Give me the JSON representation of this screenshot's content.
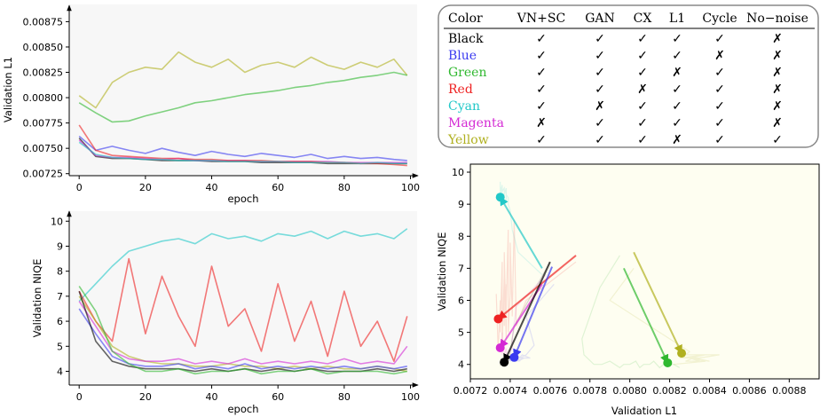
{
  "colors": {
    "Black": "#000000",
    "Blue": "#3a3af0",
    "Green": "#2fb82f",
    "Red": "#ee2222",
    "Cyan": "#22c8c8",
    "Magenta": "#d42ad4",
    "Yellow": "#b0b020",
    "panel_bg": "#f7f7f7"
  },
  "table": {
    "headers": [
      "Color",
      "VN+SC",
      "GAN",
      "CX",
      "L1",
      "Cycle",
      "No−noise"
    ],
    "rows": [
      {
        "name": "Black",
        "marks": [
          "✓",
          "✓",
          "✓",
          "✓",
          "✓",
          "✗"
        ]
      },
      {
        "name": "Blue",
        "marks": [
          "✓",
          "✓",
          "✓",
          "✓",
          "✗",
          "✗"
        ]
      },
      {
        "name": "Green",
        "marks": [
          "✓",
          "✓",
          "✓",
          "✗",
          "✓",
          "✗"
        ]
      },
      {
        "name": "Red",
        "marks": [
          "✓",
          "✓",
          "✗",
          "✓",
          "✓",
          "✗"
        ]
      },
      {
        "name": "Cyan",
        "marks": [
          "✓",
          "✗",
          "✓",
          "✓",
          "✓",
          "✗"
        ]
      },
      {
        "name": "Magenta",
        "marks": [
          "✗",
          "✓",
          "✓",
          "✓",
          "✓",
          "✗"
        ]
      },
      {
        "name": "Yellow",
        "marks": [
          "✓",
          "✓",
          "✓",
          "✗",
          "✓",
          "✓"
        ]
      }
    ]
  },
  "chart_data": [
    {
      "type": "line",
      "xlabel": "epoch",
      "ylabel": "Validation L1",
      "xlim": [
        -3,
        102
      ],
      "ylim": [
        0.00723,
        0.00892
      ],
      "xticks": [
        0,
        20,
        40,
        60,
        80,
        100
      ],
      "yticks": [
        0.00725,
        0.0075,
        0.00775,
        0.008,
        0.00825,
        0.0085,
        0.00875
      ],
      "ytick_labels": [
        "0.00725",
        "0.00750",
        "0.00775",
        "0.00800",
        "0.00825",
        "0.00850",
        "0.00875"
      ],
      "grid": false,
      "series": [
        {
          "color": "Yellow",
          "x": [
            0,
            5,
            10,
            15,
            20,
            25,
            30,
            35,
            40,
            45,
            50,
            55,
            60,
            65,
            70,
            75,
            80,
            85,
            90,
            95,
            99
          ],
          "values": [
            0.00802,
            0.0079,
            0.00815,
            0.00825,
            0.0083,
            0.00828,
            0.00845,
            0.00835,
            0.0083,
            0.00838,
            0.00825,
            0.00832,
            0.00835,
            0.0083,
            0.0084,
            0.00832,
            0.00828,
            0.00835,
            0.0083,
            0.00838,
            0.00822
          ]
        },
        {
          "color": "Green",
          "x": [
            0,
            5,
            10,
            15,
            20,
            25,
            30,
            35,
            40,
            45,
            50,
            55,
            60,
            65,
            70,
            75,
            80,
            85,
            90,
            95,
            99
          ],
          "values": [
            0.00795,
            0.00785,
            0.00776,
            0.00777,
            0.00782,
            0.00786,
            0.0079,
            0.00795,
            0.00797,
            0.008,
            0.00803,
            0.00805,
            0.00807,
            0.0081,
            0.00812,
            0.00815,
            0.00817,
            0.0082,
            0.00822,
            0.00825,
            0.00822
          ]
        },
        {
          "color": "Blue",
          "x": [
            0,
            5,
            10,
            15,
            20,
            25,
            30,
            35,
            40,
            45,
            50,
            55,
            60,
            65,
            70,
            75,
            80,
            85,
            90,
            95,
            99
          ],
          "values": [
            0.00762,
            0.00748,
            0.00752,
            0.00748,
            0.00745,
            0.0075,
            0.00746,
            0.00743,
            0.00747,
            0.00744,
            0.00742,
            0.00745,
            0.00743,
            0.00741,
            0.00744,
            0.0074,
            0.00742,
            0.0074,
            0.00741,
            0.00739,
            0.00738
          ]
        },
        {
          "color": "Black",
          "x": [
            0,
            5,
            10,
            15,
            20,
            25,
            30,
            35,
            40,
            45,
            50,
            55,
            60,
            65,
            70,
            75,
            80,
            85,
            90,
            95,
            99
          ],
          "values": [
            0.0076,
            0.00742,
            0.0074,
            0.0074,
            0.00739,
            0.00738,
            0.00738,
            0.00738,
            0.00737,
            0.00737,
            0.00737,
            0.00736,
            0.00736,
            0.00736,
            0.00736,
            0.00735,
            0.00735,
            0.00735,
            0.00735,
            0.00735,
            0.00735
          ]
        },
        {
          "color": "Magenta",
          "x": [
            0,
            5,
            10,
            15,
            20,
            25,
            30,
            35,
            40,
            45,
            50,
            55,
            60,
            65,
            70,
            75,
            80,
            85,
            90,
            95,
            99
          ],
          "values": [
            0.00758,
            0.00743,
            0.00741,
            0.00741,
            0.0074,
            0.00739,
            0.0074,
            0.00738,
            0.00738,
            0.00738,
            0.00738,
            0.00737,
            0.00737,
            0.00737,
            0.00737,
            0.00737,
            0.00736,
            0.00736,
            0.00736,
            0.00736,
            0.00736
          ]
        },
        {
          "color": "Red",
          "x": [
            0,
            5,
            10,
            15,
            20,
            25,
            30,
            35,
            40,
            45,
            50,
            55,
            60,
            65,
            70,
            75,
            80,
            85,
            90,
            95,
            99
          ],
          "values": [
            0.00773,
            0.00748,
            0.00743,
            0.00742,
            0.00741,
            0.0074,
            0.0074,
            0.00739,
            0.00739,
            0.00738,
            0.00738,
            0.00738,
            0.00737,
            0.00737,
            0.00737,
            0.00736,
            0.00736,
            0.00735,
            0.00735,
            0.00734,
            0.00733
          ]
        },
        {
          "color": "Cyan",
          "x": [
            0,
            5,
            10,
            15,
            20,
            25,
            30,
            35,
            40,
            45,
            50,
            55,
            60,
            65,
            70,
            75,
            80,
            85,
            90,
            95,
            99
          ],
          "values": [
            0.00756,
            0.00744,
            0.00741,
            0.0074,
            0.00739,
            0.00739,
            0.00738,
            0.00738,
            0.00738,
            0.00737,
            0.00737,
            0.00737,
            0.00737,
            0.00736,
            0.00736,
            0.00736,
            0.00736,
            0.00735,
            0.00736,
            0.00735,
            0.00735
          ]
        }
      ]
    },
    {
      "type": "line",
      "xlabel": "epoch",
      "ylabel": "Validation NIQE",
      "xlim": [
        -3,
        102
      ],
      "ylim": [
        3.45,
        10.4
      ],
      "xticks": [
        0,
        20,
        40,
        60,
        80,
        100
      ],
      "yticks": [
        4,
        5,
        6,
        7,
        8,
        9,
        10
      ],
      "grid": false,
      "series": [
        {
          "color": "Cyan",
          "x": [
            0,
            5,
            10,
            15,
            20,
            25,
            30,
            35,
            40,
            45,
            50,
            55,
            60,
            65,
            70,
            75,
            80,
            85,
            90,
            95,
            99
          ],
          "values": [
            6.8,
            7.5,
            8.2,
            8.8,
            9.0,
            9.2,
            9.3,
            9.1,
            9.5,
            9.3,
            9.4,
            9.2,
            9.5,
            9.4,
            9.6,
            9.3,
            9.6,
            9.4,
            9.5,
            9.3,
            9.7
          ]
        },
        {
          "color": "Red",
          "x": [
            0,
            5,
            10,
            15,
            20,
            25,
            30,
            35,
            40,
            45,
            50,
            55,
            60,
            65,
            70,
            75,
            80,
            85,
            90,
            95,
            99
          ],
          "values": [
            7.2,
            6.0,
            5.2,
            8.5,
            5.5,
            7.8,
            6.2,
            5.0,
            8.2,
            5.8,
            6.5,
            4.8,
            7.5,
            5.2,
            6.8,
            4.6,
            7.2,
            5.0,
            6.0,
            4.4,
            6.2
          ]
        },
        {
          "color": "Yellow",
          "x": [
            0,
            5,
            10,
            15,
            20,
            25,
            30,
            35,
            40,
            45,
            50,
            55,
            60,
            65,
            70,
            75,
            80,
            85,
            90,
            95,
            99
          ],
          "values": [
            7.0,
            6.0,
            5.0,
            4.6,
            4.4,
            4.3,
            4.3,
            4.2,
            4.2,
            4.3,
            4.2,
            4.2,
            4.1,
            4.2,
            4.1,
            4.2,
            4.1,
            4.1,
            4.2,
            4.1,
            4.0
          ]
        },
        {
          "color": "Magenta",
          "x": [
            0,
            5,
            10,
            15,
            20,
            25,
            30,
            35,
            40,
            45,
            50,
            55,
            60,
            65,
            70,
            75,
            80,
            85,
            90,
            95,
            99
          ],
          "values": [
            6.8,
            5.8,
            4.8,
            4.5,
            4.4,
            4.4,
            4.5,
            4.3,
            4.4,
            4.3,
            4.5,
            4.3,
            4.4,
            4.3,
            4.4,
            4.3,
            4.5,
            4.3,
            4.4,
            4.3,
            5.0
          ]
        },
        {
          "color": "Blue",
          "x": [
            0,
            5,
            10,
            15,
            20,
            25,
            30,
            35,
            40,
            45,
            50,
            55,
            60,
            65,
            70,
            75,
            80,
            85,
            90,
            95,
            99
          ],
          "values": [
            6.5,
            5.5,
            4.6,
            4.3,
            4.2,
            4.2,
            4.3,
            4.1,
            4.2,
            4.1,
            4.3,
            4.1,
            4.2,
            4.1,
            4.2,
            4.1,
            4.2,
            4.1,
            4.2,
            4.1,
            4.2
          ]
        },
        {
          "color": "Black",
          "x": [
            0,
            5,
            10,
            15,
            20,
            25,
            30,
            35,
            40,
            45,
            50,
            55,
            60,
            65,
            70,
            75,
            80,
            85,
            90,
            95,
            99
          ],
          "values": [
            7.2,
            5.2,
            4.4,
            4.2,
            4.1,
            4.1,
            4.1,
            4.0,
            4.1,
            4.0,
            4.1,
            4.0,
            4.1,
            4.0,
            4.1,
            4.0,
            4.0,
            4.0,
            4.1,
            4.0,
            4.1
          ]
        },
        {
          "color": "Green",
          "x": [
            0,
            5,
            10,
            15,
            20,
            25,
            30,
            35,
            40,
            45,
            50,
            55,
            60,
            65,
            70,
            75,
            80,
            85,
            90,
            95,
            99
          ],
          "values": [
            7.4,
            6.4,
            4.8,
            4.3,
            4.0,
            4.0,
            4.1,
            3.9,
            4.0,
            4.0,
            4.1,
            3.9,
            4.0,
            4.0,
            4.1,
            3.9,
            4.0,
            4.0,
            4.0,
            3.9,
            4.0
          ]
        }
      ]
    },
    {
      "type": "scatter",
      "xlabel": "Validation L1",
      "ylabel": "Validation NIQE",
      "xlim": [
        0.0072,
        0.00895
      ],
      "ylim": [
        3.55,
        10.25
      ],
      "xticks": [
        0.0072,
        0.0074,
        0.0076,
        0.0078,
        0.008,
        0.0082,
        0.0084,
        0.0086,
        0.0088
      ],
      "xtick_labels": [
        "0.0072",
        "0.0074",
        "0.0076",
        "0.0078",
        "0.0080",
        "0.0082",
        "0.0084",
        "0.0086",
        "0.0088"
      ],
      "yticks": [
        4,
        5,
        6,
        7,
        8,
        9,
        10
      ],
      "grid": false,
      "arrows": [
        {
          "color": "Cyan",
          "from": [
            0.00756,
            7.0
          ],
          "to": [
            0.00735,
            9.22
          ]
        },
        {
          "color": "Red",
          "from": [
            0.00773,
            7.4
          ],
          "to": [
            0.00734,
            5.42
          ]
        },
        {
          "color": "Magenta",
          "from": [
            0.00756,
            6.5
          ],
          "to": [
            0.00735,
            4.52
          ]
        },
        {
          "color": "Blue",
          "from": [
            0.00761,
            7.05
          ],
          "to": [
            0.00742,
            4.22
          ]
        },
        {
          "color": "Black",
          "from": [
            0.0076,
            7.2
          ],
          "to": [
            0.00737,
            4.07
          ]
        },
        {
          "color": "Green",
          "from": [
            0.00797,
            7.0
          ],
          "to": [
            0.00819,
            4.05
          ]
        },
        {
          "color": "Yellow",
          "from": [
            0.00802,
            7.5
          ],
          "to": [
            0.00826,
            4.35
          ]
        }
      ],
      "points": [
        {
          "color": "Cyan",
          "x": 0.00735,
          "y": 9.22
        },
        {
          "color": "Red",
          "x": 0.00734,
          "y": 5.42
        },
        {
          "color": "Magenta",
          "x": 0.00735,
          "y": 4.52
        },
        {
          "color": "Blue",
          "x": 0.00742,
          "y": 4.22
        },
        {
          "color": "Black",
          "x": 0.00737,
          "y": 4.07
        },
        {
          "color": "Green",
          "x": 0.00819,
          "y": 4.05
        },
        {
          "color": "Yellow",
          "x": 0.00826,
          "y": 4.35
        }
      ]
    }
  ]
}
